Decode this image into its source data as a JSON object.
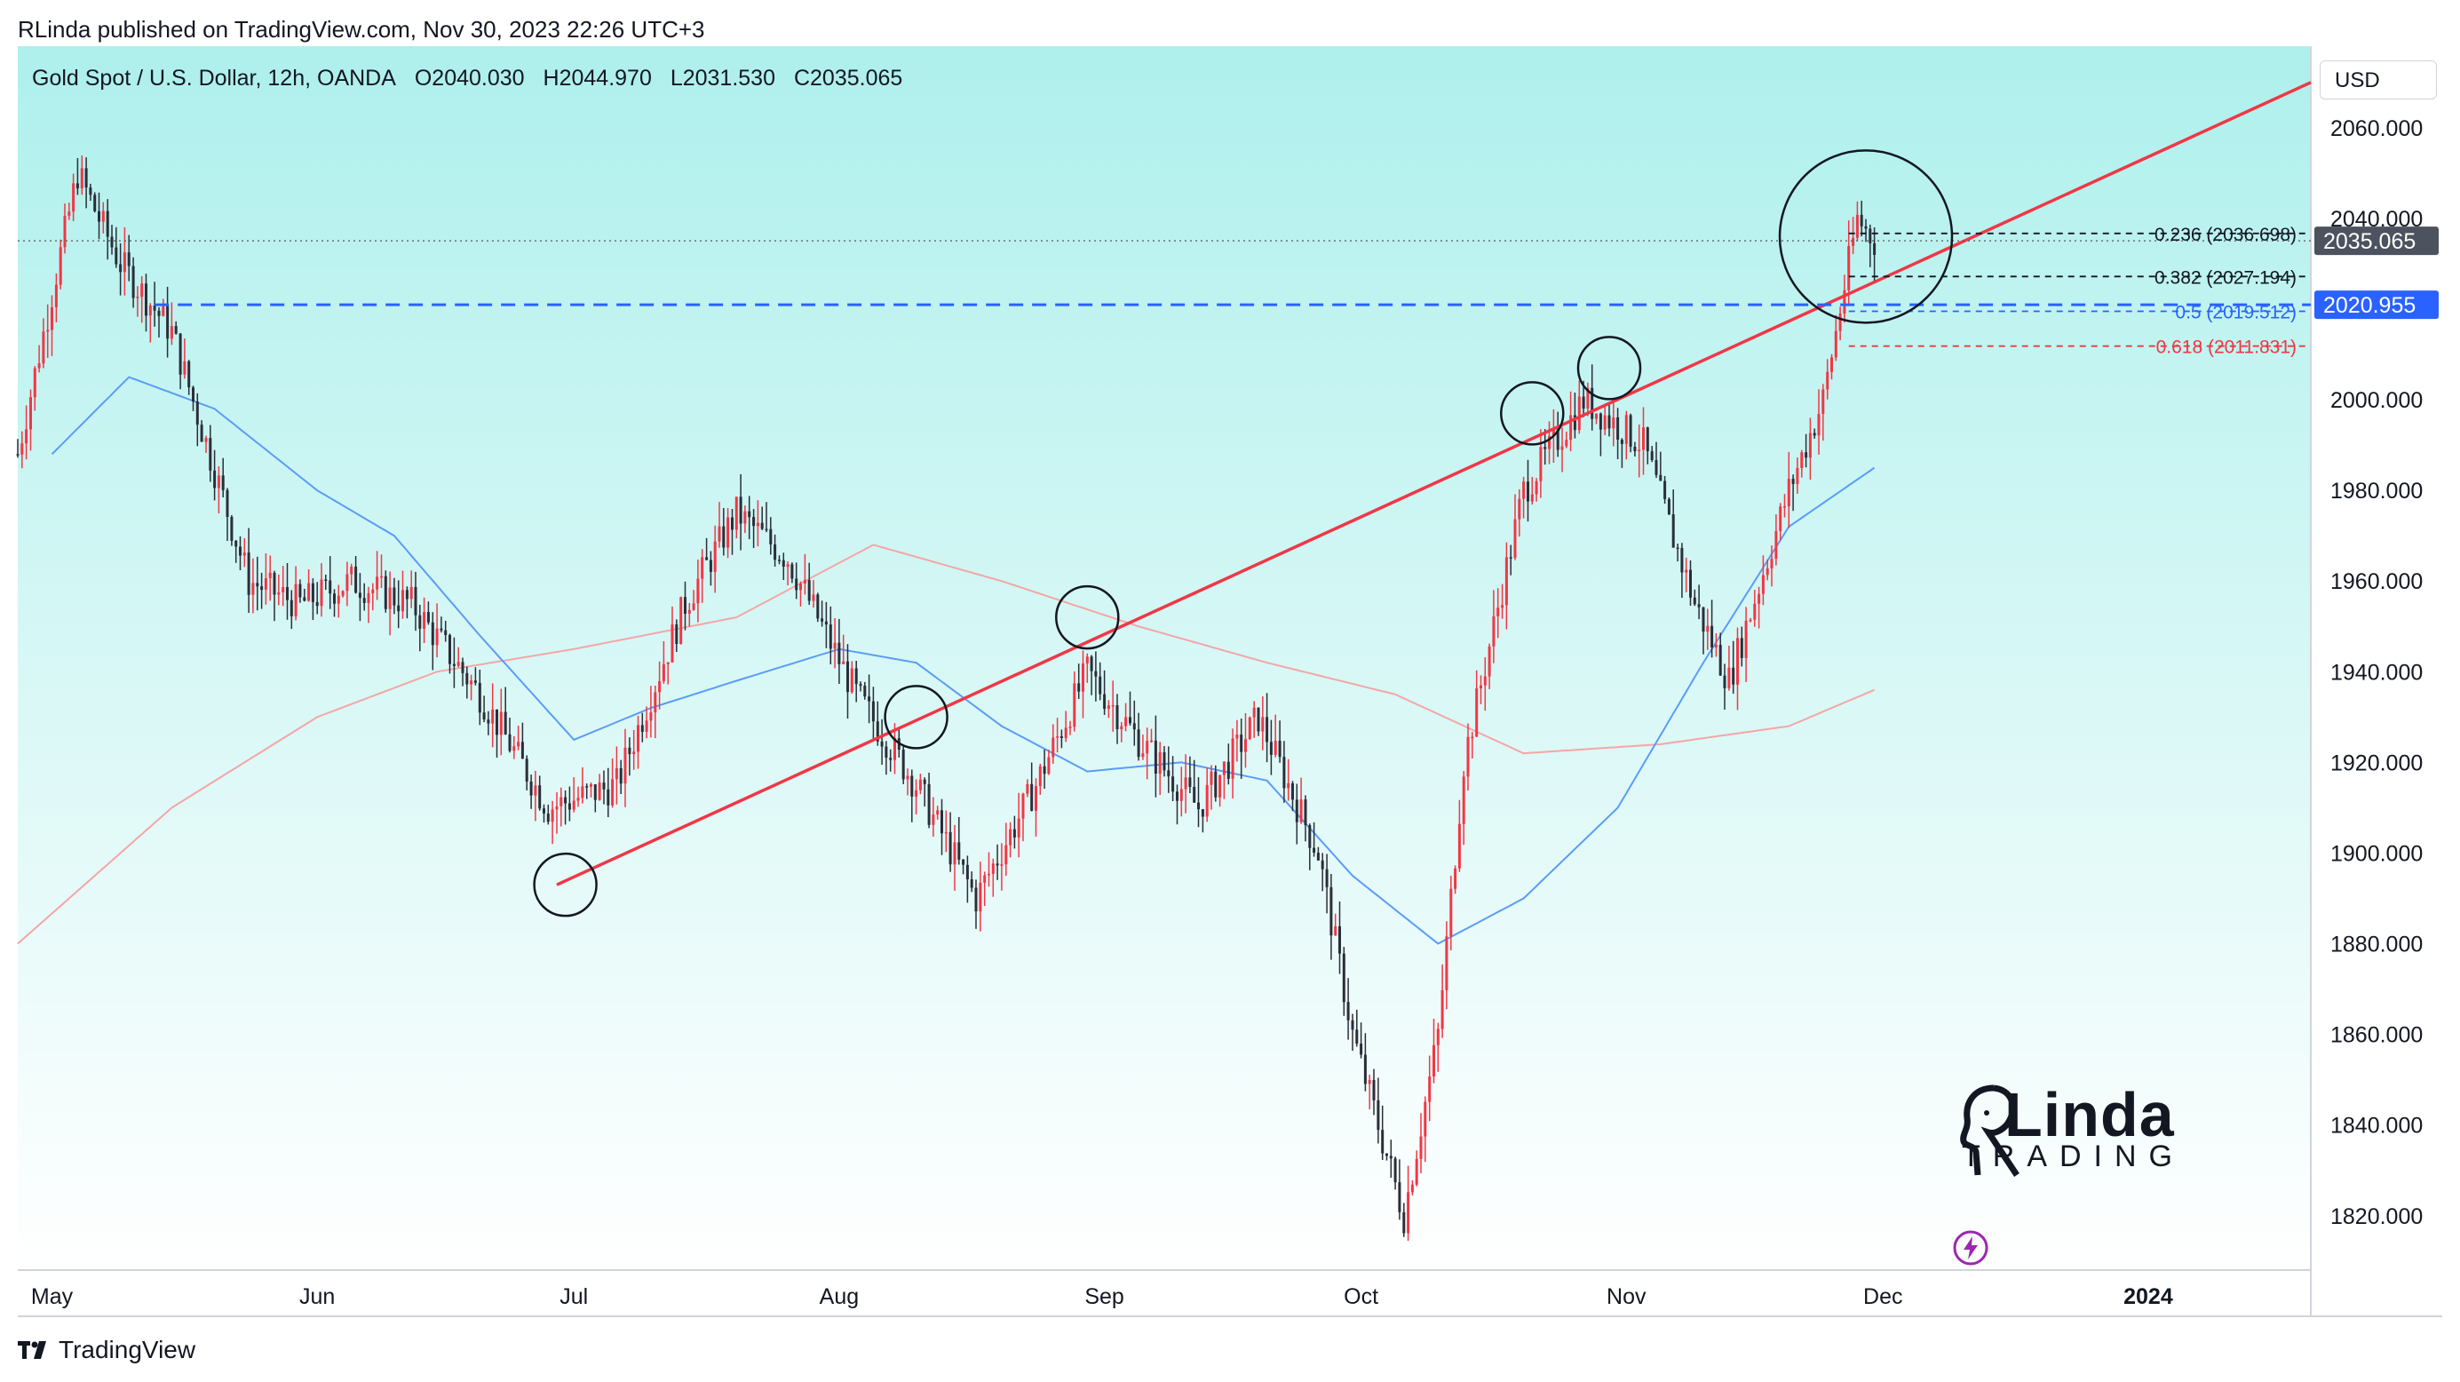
{
  "header": {
    "published": "RLinda published on TradingView.com, Nov 30, 2023 22:26 UTC+3"
  },
  "legend": {
    "symbol": "Gold Spot / U.S. Dollar, 12h, OANDA",
    "open": "O2040.030",
    "high": "H2044.970",
    "low": "L2031.530",
    "close": "C2035.065"
  },
  "currency": "USD",
  "footer": {
    "brand": "TradingView"
  },
  "watermark": {
    "line1": "Linda",
    "line2": "TRADING"
  },
  "icons": {
    "flash": "flash-icon",
    "tv_logo": "tradingview-logo-icon",
    "watermark_glyph": "rlinda-face-icon"
  },
  "colors": {
    "bg_top": "#aef0ec",
    "bg_bottom": "#ffffff",
    "up": "#f23645",
    "down": "#2a2e39",
    "trendline": "#f23645",
    "ma_short": "#5b9cf6",
    "ma_long": "#f4a6a6",
    "level_blue": "#2962ff",
    "price_tag_last": "#4c525e"
  },
  "chart_data": {
    "type": "candlestick",
    "title": "Gold Spot / U.S. Dollar, 12h, OANDA",
    "y_axis": {
      "range": [
        1808,
        2078
      ],
      "ticks": [
        "2060.000",
        "2040.000",
        "2000.000",
        "1980.000",
        "1960.000",
        "1940.000",
        "1920.000",
        "1900.000",
        "1880.000",
        "1860.000",
        "1840.000",
        "1820.000"
      ]
    },
    "x_axis": {
      "range": [
        "2023-04-27",
        "2024-01-20"
      ],
      "ticks": [
        {
          "label": "May",
          "date": "2023-05-01"
        },
        {
          "label": "Jun",
          "date": "2023-06-01"
        },
        {
          "label": "Jul",
          "date": "2023-07-01"
        },
        {
          "label": "Aug",
          "date": "2023-08-01"
        },
        {
          "label": "Sep",
          "date": "2023-09-01"
        },
        {
          "label": "Oct",
          "date": "2023-10-01"
        },
        {
          "label": "Nov",
          "date": "2023-11-01"
        },
        {
          "label": "Dec",
          "date": "2023-12-01"
        },
        {
          "label": "2024",
          "date": "2024-01-01"
        }
      ]
    },
    "close_path": [
      [
        "2023-04-27",
        1988
      ],
      [
        "2023-05-04",
        2050
      ],
      [
        "2023-05-09",
        2030
      ],
      [
        "2023-05-15",
        2015
      ],
      [
        "2023-05-24",
        1960
      ],
      [
        "2023-05-30",
        1955
      ],
      [
        "2023-06-05",
        1960
      ],
      [
        "2023-06-12",
        1955
      ],
      [
        "2023-06-20",
        1935
      ],
      [
        "2023-06-28",
        1910
      ],
      [
        "2023-07-06",
        1915
      ],
      [
        "2023-07-14",
        1955
      ],
      [
        "2023-07-20",
        1975
      ],
      [
        "2023-07-26",
        1965
      ],
      [
        "2023-08-03",
        1935
      ],
      [
        "2023-08-10",
        1915
      ],
      [
        "2023-08-17",
        1890
      ],
      [
        "2023-08-24",
        1915
      ],
      [
        "2023-08-30",
        1940
      ],
      [
        "2023-09-05",
        1925
      ],
      [
        "2023-09-12",
        1910
      ],
      [
        "2023-09-19",
        1930
      ],
      [
        "2023-09-26",
        1900
      ],
      [
        "2023-09-30",
        1860
      ],
      [
        "2023-10-06",
        1820
      ],
      [
        "2023-10-10",
        1860
      ],
      [
        "2023-10-13",
        1920
      ],
      [
        "2023-10-20",
        1980
      ],
      [
        "2023-10-27",
        2000
      ],
      [
        "2023-11-03",
        1990
      ],
      [
        "2023-11-09",
        1955
      ],
      [
        "2023-11-13",
        1938
      ],
      [
        "2023-11-20",
        1980
      ],
      [
        "2023-11-24",
        2000
      ],
      [
        "2023-11-28",
        2040
      ],
      [
        "2023-11-30",
        2035
      ]
    ],
    "ma_short_path": [
      [
        "2023-05-01",
        1988
      ],
      [
        "2023-05-10",
        2005
      ],
      [
        "2023-05-20",
        1998
      ],
      [
        "2023-06-01",
        1980
      ],
      [
        "2023-06-10",
        1970
      ],
      [
        "2023-06-20",
        1948
      ],
      [
        "2023-07-01",
        1925
      ],
      [
        "2023-07-10",
        1932
      ],
      [
        "2023-07-20",
        1938
      ],
      [
        "2023-08-01",
        1945
      ],
      [
        "2023-08-10",
        1942
      ],
      [
        "2023-08-20",
        1928
      ],
      [
        "2023-08-30",
        1918
      ],
      [
        "2023-09-10",
        1920
      ],
      [
        "2023-09-20",
        1916
      ],
      [
        "2023-09-30",
        1895
      ],
      [
        "2023-10-10",
        1880
      ],
      [
        "2023-10-20",
        1890
      ],
      [
        "2023-10-31",
        1910
      ],
      [
        "2023-11-10",
        1942
      ],
      [
        "2023-11-20",
        1972
      ],
      [
        "2023-11-30",
        1985
      ]
    ],
    "ma_long_path": [
      [
        "2023-04-27",
        1880
      ],
      [
        "2023-05-15",
        1910
      ],
      [
        "2023-06-01",
        1930
      ],
      [
        "2023-06-15",
        1940
      ],
      [
        "2023-07-01",
        1945
      ],
      [
        "2023-07-20",
        1952
      ],
      [
        "2023-08-05",
        1968
      ],
      [
        "2023-08-20",
        1960
      ],
      [
        "2023-09-05",
        1950
      ],
      [
        "2023-09-20",
        1942
      ],
      [
        "2023-10-05",
        1935
      ],
      [
        "2023-10-20",
        1922
      ],
      [
        "2023-11-05",
        1924
      ],
      [
        "2023-11-20",
        1928
      ],
      [
        "2023-11-30",
        1936
      ]
    ],
    "trendline": {
      "from": [
        "2023-06-29",
        1893
      ],
      "to": [
        "2024-01-20",
        2070
      ]
    },
    "horizontal_level": {
      "price": 2020.955,
      "label": "2020.955",
      "from": "2023-05-13"
    },
    "last_price": {
      "price": 2035.065,
      "label": "2035.065"
    },
    "fibonacci": [
      {
        "ratio": "0.236",
        "price": 2036.698,
        "label": "0.236 (2036.698)",
        "color": "#131722"
      },
      {
        "ratio": "0.382",
        "price": 2027.194,
        "label": "0.382 (2027.194)",
        "color": "#131722"
      },
      {
        "ratio": "0.5",
        "price": 2019.512,
        "label": "0.5 (2019.512)",
        "color": "#2962ff"
      },
      {
        "ratio": "0.618",
        "price": 2011.831,
        "label": "0.618 (2011.831)",
        "color": "#f23645"
      }
    ],
    "circles": [
      {
        "date": "2023-06-30",
        "price": 1893,
        "size": "small"
      },
      {
        "date": "2023-08-10",
        "price": 1930,
        "size": "small"
      },
      {
        "date": "2023-08-30",
        "price": 1952,
        "size": "small"
      },
      {
        "date": "2023-10-21",
        "price": 1997,
        "size": "small"
      },
      {
        "date": "2023-10-30",
        "price": 2007,
        "size": "small"
      },
      {
        "date": "2023-11-29",
        "price": 2036,
        "size": "large"
      }
    ]
  }
}
